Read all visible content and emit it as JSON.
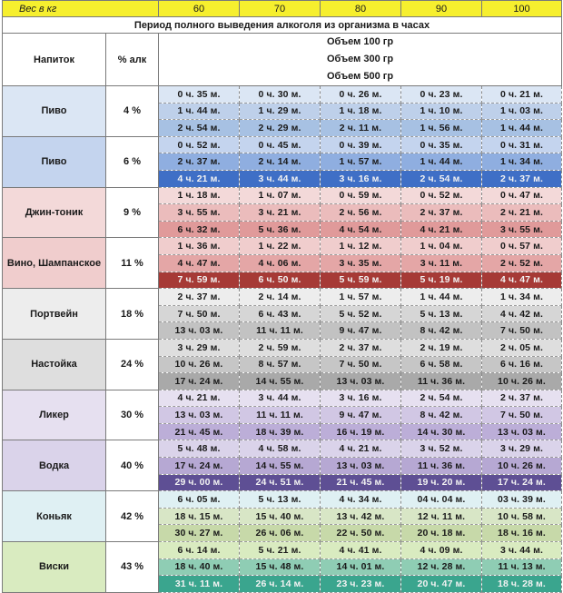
{
  "header": {
    "weight_label": "Вес в кг",
    "weights": [
      "60",
      "70",
      "80",
      "90",
      "100"
    ]
  },
  "title": "Период полного выведения алкоголя из организма в часах",
  "col_drink": "Напиток",
  "col_pct": "% алк",
  "volumes": [
    "Объем 100 гр",
    "Объем 300 гр",
    "Объем 500 гр"
  ],
  "colors": {
    "pivo4": [
      "#dbe6f4",
      "#bed0ea",
      "#a7c1e3"
    ],
    "pivo6": [
      "#c4d4ee",
      "#8faee0",
      "#3f6fc6"
    ],
    "gin": [
      "#f3d9d9",
      "#ebbcbc",
      "#e09a9a"
    ],
    "vino": [
      "#f0cdcd",
      "#e4a6a6",
      "#a63a36"
    ],
    "port": [
      "#ededed",
      "#d6d6d6",
      "#c2c2c2"
    ],
    "nast": [
      "#dedede",
      "#c6c6c6",
      "#a9a9a9"
    ],
    "liker": [
      "#e6e0f0",
      "#d1c7e4",
      "#bcaed8"
    ],
    "vodka": [
      "#dad3ea",
      "#b6a8d3",
      "#5e4f94"
    ],
    "konyak": [
      "#dff0f3",
      "#d8e6c6",
      "#c7d9a9"
    ],
    "viski": [
      "#d9ebc0",
      "#8fcdb4",
      "#3aa58e"
    ]
  },
  "drinks": [
    {
      "name": "Пиво",
      "pct": "4 %",
      "color": "pivo4",
      "rows": [
        [
          "0 ч. 35 м.",
          "0 ч. 30 м.",
          "0 ч. 26 м.",
          "0 ч. 23 м.",
          "0 ч. 21 м."
        ],
        [
          "1 ч. 44 м.",
          "1 ч. 29 м.",
          "1 ч. 18 м.",
          "1 ч. 10 м.",
          "1 ч. 03 м."
        ],
        [
          "2 ч. 54 м.",
          "2 ч. 29 м.",
          "2 ч. 11 м.",
          "1 ч. 56 м.",
          "1 ч. 44 м."
        ]
      ]
    },
    {
      "name": "Пиво",
      "pct": "6 %",
      "color": "pivo6",
      "rows": [
        [
          "0 ч. 52 м.",
          "0 ч. 45 м.",
          "0 ч. 39 м.",
          "0 ч. 35 м.",
          "0 ч. 31 м."
        ],
        [
          "2 ч. 37 м.",
          "2 ч. 14 м.",
          "1 ч. 57 м.",
          "1 ч. 44 м.",
          "1 ч. 34 м."
        ],
        [
          "4 ч. 21 м.",
          "3 ч. 44 м.",
          "3 ч. 16 м.",
          "2 ч. 54 м.",
          "2 ч. 37 м."
        ]
      ]
    },
    {
      "name": "Джин-тоник",
      "pct": "9 %",
      "color": "gin",
      "rows": [
        [
          "1 ч. 18 м.",
          "1 ч. 07 м.",
          "0 ч. 59 м.",
          "0 ч. 52 м.",
          "0 ч. 47 м."
        ],
        [
          "3 ч. 55 м.",
          "3 ч. 21 м.",
          "2 ч. 56 м.",
          "2 ч. 37 м.",
          "2 ч. 21 м."
        ],
        [
          "6 ч. 32 м.",
          "5 ч. 36 м.",
          "4 ч. 54 м.",
          "4 ч. 21 м.",
          "3 ч. 55 м."
        ]
      ]
    },
    {
      "name": "Вино, Шампанское",
      "pct": "11 %",
      "color": "vino",
      "rows": [
        [
          "1 ч. 36 м.",
          "1 ч. 22 м.",
          "1 ч. 12 м.",
          "1 ч. 04 м.",
          "0 ч. 57 м."
        ],
        [
          "4 ч. 47 м.",
          "4 ч. 06 м.",
          "3 ч. 35 м.",
          "3 ч. 11 м.",
          "2 ч. 52 м."
        ],
        [
          "7 ч. 59 м.",
          "6 ч. 50 м.",
          "5 ч. 59 м.",
          "5 ч. 19 м.",
          "4 ч. 47 м."
        ]
      ]
    },
    {
      "name": "Портвейн",
      "pct": "18 %",
      "color": "port",
      "rows": [
        [
          "2 ч. 37 м.",
          "2 ч. 14 м.",
          "1 ч. 57 м.",
          "1 ч. 44 м.",
          "1 ч. 34 м."
        ],
        [
          "7 ч. 50 м.",
          "6 ч. 43 м.",
          "5 ч. 52 м.",
          "5 ч. 13 м.",
          "4 ч. 42 м."
        ],
        [
          "13 ч. 03 м.",
          "11 ч. 11 м.",
          "9 ч. 47 м.",
          "8 ч. 42 м.",
          "7 ч. 50 м."
        ]
      ]
    },
    {
      "name": "Настойка",
      "pct": "24 %",
      "color": "nast",
      "rows": [
        [
          "3 ч. 29 м.",
          "2 ч. 59 м.",
          "2 ч. 37 м.",
          "2 ч. 19 м.",
          "2 ч. 05 м."
        ],
        [
          "10 ч. 26 м.",
          "8 ч. 57 м.",
          "7 ч. 50 м.",
          "6 ч. 58 м.",
          "6 ч. 16 м."
        ],
        [
          "17 ч. 24 м.",
          "14 ч. 55 м.",
          "13 ч. 03 м.",
          "11 ч. 36 м.",
          "10 ч. 26 м."
        ]
      ]
    },
    {
      "name": "Ликер",
      "pct": "30 %",
      "color": "liker",
      "rows": [
        [
          "4 ч. 21 м.",
          "3 ч. 44 м.",
          "3 ч. 16 м.",
          "2 ч. 54 м.",
          "2 ч. 37 м."
        ],
        [
          "13 ч. 03 м.",
          "11 ч. 11 м.",
          "9 ч. 47 м.",
          "8 ч. 42 м.",
          "7 ч. 50 м."
        ],
        [
          "21 ч. 45 м.",
          "18 ч. 39 м.",
          "16 ч. 19 м.",
          "14 ч. 30 м.",
          "13 ч. 03 м."
        ]
      ]
    },
    {
      "name": "Водка",
      "pct": "40 %",
      "color": "vodka",
      "rows": [
        [
          "5 ч. 48 м.",
          "4 ч. 58 м.",
          "4 ч. 21 м.",
          "3 ч. 52 м.",
          "3 ч. 29 м."
        ],
        [
          "17 ч. 24 м.",
          "14 ч. 55 м.",
          "13 ч. 03 м.",
          "11 ч. 36 м.",
          "10 ч. 26 м."
        ],
        [
          "29 ч. 00 м.",
          "24 ч. 51 м.",
          "21 ч. 45 м.",
          "19 ч. 20 м.",
          "17 ч. 24 м."
        ]
      ]
    },
    {
      "name": "Коньяк",
      "pct": "42 %",
      "color": "konyak",
      "rows": [
        [
          "6 ч. 05 м.",
          "5 ч. 13 м.",
          "4 ч. 34 м.",
          "04 ч. 04 м.",
          "03 ч. 39 м."
        ],
        [
          "18 ч. 15 м.",
          "15 ч. 40 м.",
          "13 ч. 42 м.",
          "12 ч. 11 м.",
          "10 ч. 58 м."
        ],
        [
          "30 ч. 27 м.",
          "26 ч. 06 м.",
          "22 ч. 50 м.",
          "20 ч. 18 м.",
          "18 ч. 16 м."
        ]
      ]
    },
    {
      "name": "Виски",
      "pct": "43 %",
      "color": "viski",
      "rows": [
        [
          "6 ч. 14 м.",
          "5 ч. 21 м.",
          "4 ч. 41 м.",
          "4 ч. 09 м.",
          "3 ч. 44 м."
        ],
        [
          "18 ч. 40 м.",
          "15 ч. 48 м.",
          "14 ч. 01 м.",
          "12 ч. 28 м.",
          "11 ч. 13 м."
        ],
        [
          "31 ч. 11 м.",
          "26 ч. 14 м.",
          "23 ч. 23 м.",
          "20 ч. 47 м.",
          "18 ч. 28 м."
        ]
      ]
    }
  ]
}
